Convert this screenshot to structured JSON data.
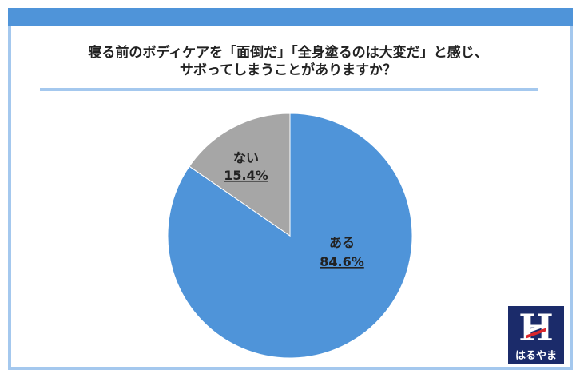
{
  "title_line1": "寝る前のボディケアを「面倒だ」「全身塗るのは大変だ」と感じ、",
  "title_line2": "サボってしまうことがありますか？",
  "logo": {
    "text": "はるやま",
    "letter": "H"
  },
  "colors": {
    "header": "#4f94d9",
    "frame": "#a4c8ee",
    "aru": "#4f94d9",
    "nai": "#a6a6a6"
  },
  "chart_data": {
    "type": "pie",
    "start": "12 o'clock, counterclockwise for ない",
    "slices": [
      {
        "label": "ある",
        "value": 84.6,
        "value_label": "84.6%",
        "color": "#4f94d9"
      },
      {
        "label": "ない",
        "value": 15.4,
        "value_label": "15.4%",
        "color": "#a6a6a6"
      }
    ]
  }
}
